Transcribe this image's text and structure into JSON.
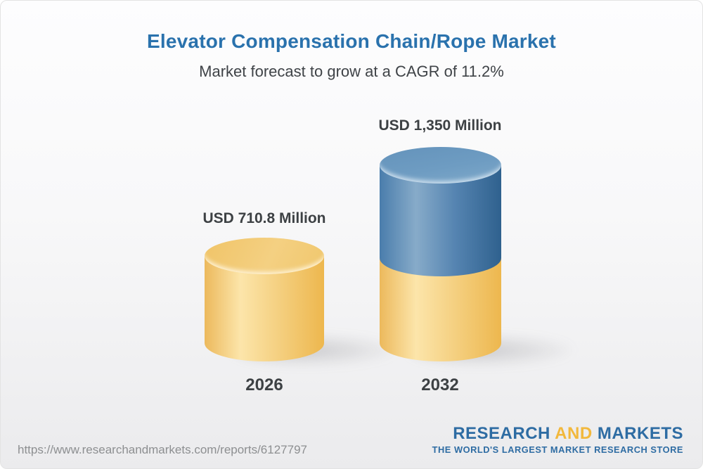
{
  "header": {
    "title": "Elevator Compensation Chain/Rope Market",
    "subtitle": "Market forecast to grow at a CAGR of 11.2%"
  },
  "chart_data": {
    "type": "bar",
    "style": "3d-cylinder",
    "title": "Elevator Compensation Chain/Rope Market",
    "subtitle": "Market forecast to grow at a CAGR of 11.2%",
    "categories": [
      "2026",
      "2032"
    ],
    "values": [
      710.8,
      1350
    ],
    "value_labels": [
      "USD 710.8 Million",
      "USD 1,350 Million"
    ],
    "unit": "USD Million",
    "cagr_percent": 11.2,
    "legend": "none",
    "layout_note": "2032 cylinder stacked: gold base equal to 2026 value, blue top segment is forecast growth delta"
  },
  "bars": [
    {
      "year": "2026",
      "value_label": "USD 710.8 Million",
      "color": "#f2c566"
    },
    {
      "year": "2032",
      "value_label": "USD 1,350 Million",
      "color_base": "#f2c566",
      "color_top": "#4a7dac"
    }
  ],
  "footer": {
    "url": "https://www.researchandmarkets.com/reports/6127797",
    "logo": {
      "word1": "RESEARCH",
      "word2": "AND",
      "word3": "MARKETS",
      "tagline": "THE WORLD'S LARGEST MARKET RESEARCH STORE"
    }
  },
  "colors": {
    "title_blue": "#2a72ad",
    "text_dark": "#3d4144",
    "bar_gold": "#f2c566",
    "bar_blue": "#4a7dac",
    "logo_blue": "#2e6ca3",
    "logo_yellow": "#f2b83c",
    "url_gray": "#8d8f91"
  }
}
